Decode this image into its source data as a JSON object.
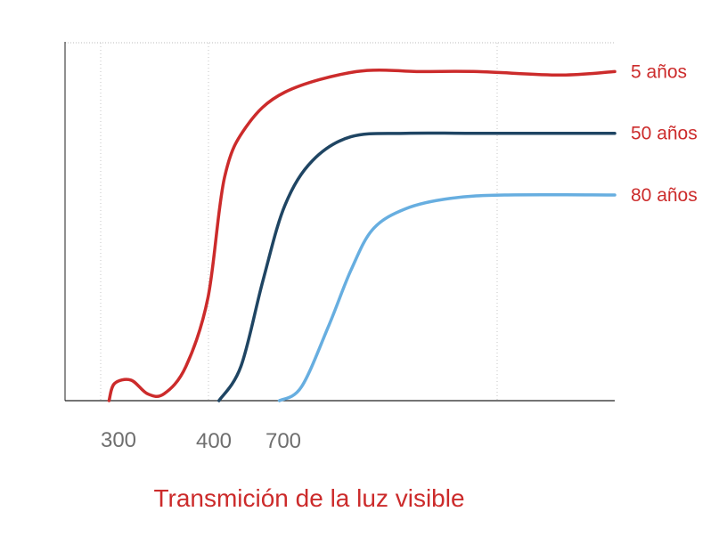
{
  "chart_data": {
    "type": "line",
    "title": "Transmición de la luz visible",
    "xlabel": "",
    "ylabel": "",
    "x_tick_labels": [
      "300",
      "400",
      "700"
    ],
    "xlim": [
      0,
      100
    ],
    "ylim": [
      0,
      100
    ],
    "grid": "vertical-dotted",
    "legend": "right-end-labels",
    "series": [
      {
        "name": "5 años",
        "color": "#cc2b2b",
        "points": [
          [
            8,
            0
          ],
          [
            9,
            5
          ],
          [
            12,
            6
          ],
          [
            15,
            2
          ],
          [
            18,
            2
          ],
          [
            22,
            10
          ],
          [
            26,
            30
          ],
          [
            29,
            65
          ],
          [
            33,
            80
          ],
          [
            40,
            90
          ],
          [
            53,
            96
          ],
          [
            65,
            96
          ],
          [
            75,
            96
          ],
          [
            90,
            95
          ],
          [
            100,
            96
          ]
        ]
      },
      {
        "name": "50 años",
        "color": "#1f4563",
        "points": [
          [
            28,
            0
          ],
          [
            32,
            10
          ],
          [
            36,
            35
          ],
          [
            40,
            57
          ],
          [
            45,
            70
          ],
          [
            52,
            77
          ],
          [
            62,
            78
          ],
          [
            75,
            78
          ],
          [
            100,
            78
          ]
        ]
      },
      {
        "name": "80 años",
        "color": "#67aee0",
        "points": [
          [
            39,
            0
          ],
          [
            43,
            4
          ],
          [
            48,
            22
          ],
          [
            52,
            38
          ],
          [
            56,
            50
          ],
          [
            62,
            56
          ],
          [
            70,
            59
          ],
          [
            80,
            60
          ],
          [
            100,
            60
          ]
        ]
      }
    ]
  }
}
